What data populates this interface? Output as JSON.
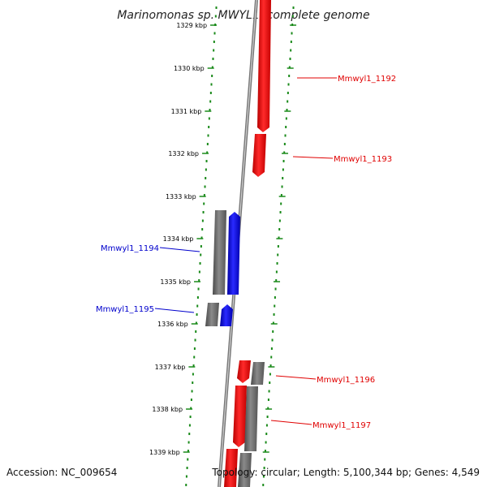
{
  "title": "Marinomonas sp. MWYL1, complete genome",
  "footer": {
    "accession": "Accession: NC_009654",
    "summary": "Topology: circular; Length: 5,100,344 bp; Genes: 4,549"
  },
  "colors": {
    "forward_gene": "#ff0000",
    "reverse_gene": "#0000ff",
    "cds": "#6e6e6e",
    "tick": "#1a8a1a",
    "backbone": "#8a8a8a"
  },
  "ticks": [
    "1329 kbp",
    "1330 kbp",
    "1331 kbp",
    "1332 kbp",
    "1333 kbp",
    "1334 kbp",
    "1335 kbp",
    "1336 kbp",
    "1337 kbp",
    "1338 kbp",
    "1339 kbp"
  ],
  "genes": [
    {
      "name": "Mmwyl1_1192",
      "strand": "forward",
      "color": "#e00000"
    },
    {
      "name": "Mmwyl1_1193",
      "strand": "forward",
      "color": "#e00000"
    },
    {
      "name": "Mmwyl1_1194",
      "strand": "reverse",
      "color": "#0000cc"
    },
    {
      "name": "Mmwyl1_1195",
      "strand": "reverse",
      "color": "#0000cc"
    },
    {
      "name": "Mmwyl1_1196",
      "strand": "forward",
      "color": "#e00000"
    },
    {
      "name": "Mmwyl1_1197",
      "strand": "forward",
      "color": "#e00000"
    }
  ]
}
